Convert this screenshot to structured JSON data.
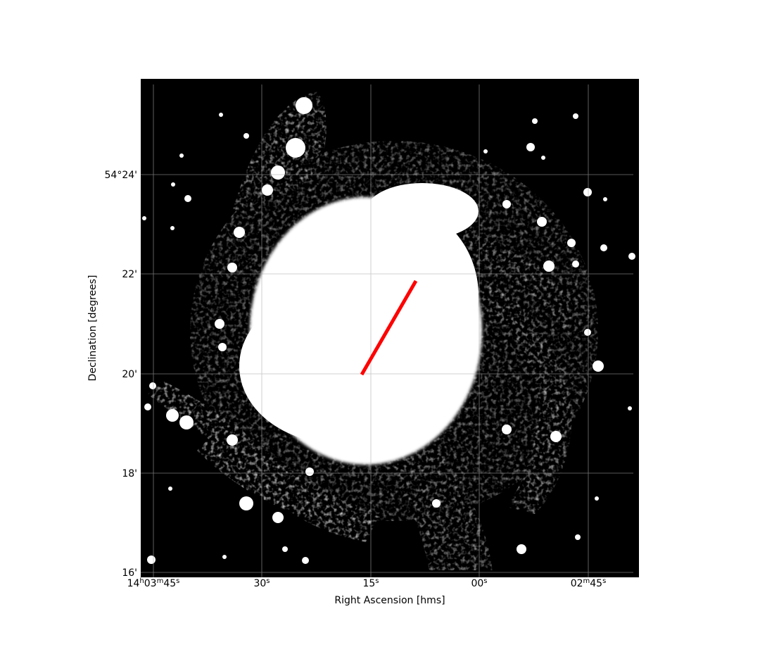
{
  "figure": {
    "xlabel": "Right Ascension [hms]",
    "ylabel": "Declination [degrees]",
    "x_ticks": [
      {
        "h": "14",
        "m": "03",
        "s": "45",
        "show_h": true,
        "show_m": true
      },
      {
        "s": "30",
        "show_h": false,
        "show_m": false
      },
      {
        "s": "15",
        "show_h": false,
        "show_m": false
      },
      {
        "s": "00",
        "show_h": false,
        "show_m": false
      },
      {
        "m": "02",
        "s": "45",
        "show_h": false,
        "show_m": true
      }
    ],
    "y_ticks": [
      "54°24'",
      "22'",
      "20'",
      "18'",
      "16'"
    ],
    "colors": {
      "background": "#000000",
      "galaxy": "#ffffff",
      "line": "#ff0000",
      "grid": "#aaaaaa"
    }
  }
}
